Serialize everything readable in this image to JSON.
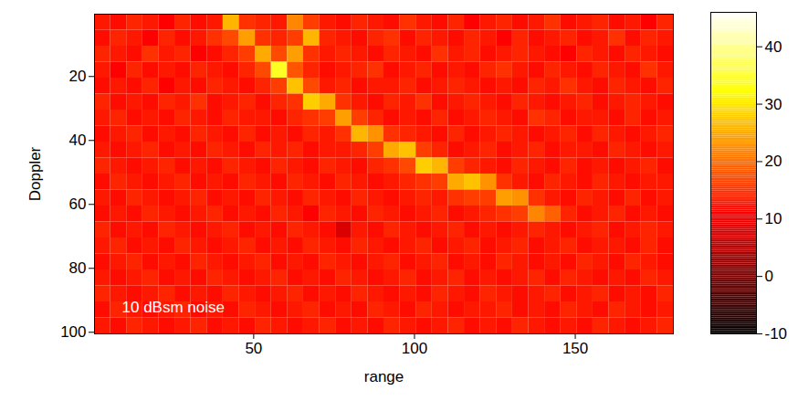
{
  "chart_data": {
    "type": "heatmap",
    "xlabel": "range",
    "ylabel": "Doppler",
    "annotation": "10 dBsm noise",
    "color": "hot",
    "xlim": [
      0.5,
      180.5
    ],
    "xticks": [
      50,
      100,
      150
    ],
    "ylim": [
      0.5,
      100.5
    ],
    "yticks": [
      20,
      40,
      60,
      80,
      100
    ],
    "x": [
      3,
      8,
      13,
      18,
      23,
      28,
      33,
      38,
      43,
      48,
      53,
      58,
      63,
      68,
      73,
      78,
      83,
      88,
      93,
      98,
      103,
      108,
      113,
      118,
      123,
      128,
      133,
      138,
      143,
      148,
      153,
      158,
      163,
      168,
      173,
      178
    ],
    "y": [
      3,
      8,
      13,
      18,
      23,
      28,
      33,
      38,
      43,
      48,
      53,
      58,
      63,
      68,
      73,
      78,
      83,
      88,
      93,
      98
    ],
    "cells": [
      [
        13,
        12,
        14,
        13,
        11,
        14,
        12,
        13,
        26,
        15,
        14,
        13,
        22,
        16,
        13,
        12,
        14,
        13,
        12,
        15,
        13,
        12,
        14,
        11,
        13,
        14,
        12,
        13,
        15,
        12,
        13,
        14,
        12,
        13,
        11,
        14
      ],
      [
        12,
        14,
        13,
        11,
        14,
        12,
        13,
        15,
        17,
        24,
        15,
        14,
        16,
        26,
        14,
        13,
        12,
        14,
        15,
        12,
        14,
        13,
        12,
        14,
        13,
        11,
        14,
        12,
        13,
        14,
        12,
        13,
        15,
        12,
        14,
        13
      ],
      [
        14,
        13,
        12,
        15,
        13,
        14,
        11,
        12,
        14,
        16,
        25,
        17,
        24,
        15,
        13,
        14,
        13,
        12,
        14,
        13,
        12,
        15,
        13,
        14,
        12,
        13,
        14,
        13,
        12,
        11,
        14,
        13,
        12,
        14,
        13,
        12
      ],
      [
        13,
        11,
        14,
        12,
        13,
        12,
        14,
        13,
        12,
        14,
        17,
        34,
        18,
        14,
        12,
        13,
        14,
        15,
        12,
        13,
        14,
        12,
        13,
        12,
        14,
        15,
        13,
        12,
        14,
        13,
        12,
        14,
        13,
        12,
        15,
        13
      ],
      [
        12,
        13,
        12,
        14,
        11,
        13,
        12,
        14,
        13,
        12,
        14,
        16,
        27,
        17,
        13,
        14,
        12,
        13,
        13,
        14,
        12,
        13,
        14,
        13,
        12,
        13,
        12,
        14,
        13,
        15,
        13,
        12,
        14,
        13,
        12,
        14
      ],
      [
        14,
        12,
        13,
        12,
        14,
        13,
        15,
        12,
        13,
        14,
        12,
        14,
        15,
        28,
        25,
        15,
        13,
        12,
        14,
        13,
        15,
        12,
        13,
        14,
        13,
        12,
        14,
        13,
        12,
        13,
        14,
        12,
        13,
        14,
        13,
        12
      ],
      [
        13,
        14,
        12,
        13,
        12,
        14,
        13,
        12,
        14,
        13,
        13,
        12,
        14,
        15,
        16,
        24,
        16,
        14,
        12,
        13,
        12,
        14,
        12,
        13,
        14,
        13,
        12,
        15,
        14,
        12,
        13,
        13,
        12,
        14,
        12,
        13
      ],
      [
        12,
        13,
        14,
        12,
        13,
        12,
        14,
        13,
        12,
        14,
        12,
        13,
        12,
        14,
        13,
        15,
        26,
        23,
        15,
        14,
        13,
        12,
        14,
        12,
        13,
        14,
        13,
        12,
        13,
        14,
        12,
        14,
        13,
        12,
        13,
        14
      ],
      [
        13,
        12,
        13,
        14,
        12,
        13,
        12,
        14,
        13,
        12,
        14,
        13,
        14,
        12,
        13,
        13,
        14,
        16,
        25,
        27,
        16,
        14,
        12,
        13,
        14,
        12,
        13,
        14,
        12,
        13,
        13,
        12,
        14,
        13,
        12,
        13
      ],
      [
        14,
        13,
        12,
        13,
        14,
        12,
        13,
        12,
        14,
        13,
        12,
        14,
        13,
        12,
        14,
        13,
        12,
        14,
        15,
        17,
        28,
        26,
        16,
        14,
        13,
        12,
        14,
        13,
        12,
        14,
        12,
        13,
        12,
        13,
        14,
        12
      ],
      [
        12,
        14,
        13,
        12,
        13,
        14,
        12,
        13,
        12,
        14,
        13,
        12,
        14,
        13,
        12,
        14,
        13,
        12,
        13,
        14,
        15,
        16,
        25,
        27,
        23,
        15,
        13,
        12,
        14,
        13,
        12,
        14,
        13,
        12,
        13,
        13
      ],
      [
        13,
        12,
        14,
        13,
        12,
        13,
        14,
        12,
        13,
        12,
        14,
        13,
        12,
        14,
        13,
        12,
        14,
        13,
        12,
        13,
        14,
        13,
        15,
        16,
        16,
        24,
        23,
        15,
        13,
        12,
        14,
        13,
        12,
        14,
        12,
        13
      ],
      [
        12,
        13,
        12,
        14,
        13,
        12,
        13,
        14,
        12,
        13,
        12,
        14,
        13,
        11,
        14,
        13,
        12,
        14,
        13,
        12,
        13,
        14,
        12,
        13,
        14,
        15,
        16,
        22,
        19,
        14,
        12,
        13,
        14,
        12,
        13,
        12
      ],
      [
        14,
        12,
        13,
        12,
        14,
        13,
        12,
        13,
        14,
        12,
        13,
        12,
        14,
        13,
        12,
        8,
        13,
        12,
        14,
        13,
        12,
        13,
        14,
        12,
        13,
        12,
        13,
        14,
        13,
        12,
        13,
        14,
        12,
        13,
        14,
        13
      ],
      [
        13,
        14,
        12,
        13,
        12,
        14,
        13,
        12,
        13,
        14,
        12,
        13,
        12,
        14,
        13,
        12,
        14,
        13,
        12,
        13,
        14,
        12,
        13,
        14,
        12,
        13,
        14,
        12,
        13,
        14,
        12,
        13,
        13,
        12,
        14,
        12
      ],
      [
        12,
        13,
        14,
        12,
        13,
        12,
        14,
        13,
        12,
        13,
        14,
        12,
        13,
        12,
        14,
        13,
        12,
        13,
        14,
        12,
        13,
        14,
        12,
        13,
        12,
        14,
        13,
        12,
        13,
        12,
        14,
        13,
        12,
        14,
        13,
        12
      ],
      [
        13,
        12,
        13,
        14,
        12,
        13,
        12,
        14,
        13,
        12,
        13,
        14,
        12,
        13,
        12,
        14,
        13,
        12,
        13,
        14,
        12,
        13,
        14,
        12,
        13,
        12,
        13,
        14,
        12,
        14,
        13,
        12,
        13,
        12,
        14,
        13
      ],
      [
        14,
        13,
        12,
        13,
        14,
        12,
        13,
        12,
        14,
        13,
        12,
        13,
        14,
        12,
        13,
        12,
        14,
        13,
        12,
        13,
        12,
        14,
        13,
        12,
        14,
        13,
        12,
        13,
        14,
        12,
        13,
        14,
        12,
        13,
        12,
        14
      ],
      [
        12,
        14,
        13,
        12,
        13,
        14,
        12,
        13,
        12,
        14,
        13,
        12,
        13,
        14,
        12,
        13,
        12,
        14,
        13,
        12,
        14,
        13,
        12,
        13,
        13,
        14,
        12,
        13,
        12,
        14,
        13,
        12,
        14,
        13,
        12,
        13
      ],
      [
        13,
        12,
        14,
        13,
        12,
        13,
        14,
        12,
        13,
        12,
        14,
        13,
        12,
        13,
        14,
        12,
        13,
        12,
        14,
        13,
        12,
        13,
        14,
        12,
        13,
        12,
        14,
        13,
        12,
        13,
        12,
        14,
        13,
        12,
        13,
        14
      ]
    ],
    "colorbar": {
      "range": [
        -10,
        46
      ],
      "ticks": [
        -10,
        0,
        10,
        20,
        30,
        40
      ]
    }
  }
}
